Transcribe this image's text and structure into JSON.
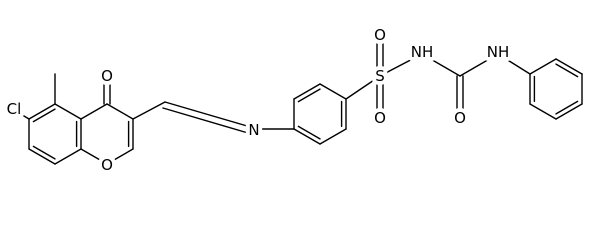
{
  "atom_labels": [
    "Cl",
    "O",
    "O",
    "N",
    "S",
    "O",
    "O",
    "NH",
    "O",
    "NH"
  ]
}
